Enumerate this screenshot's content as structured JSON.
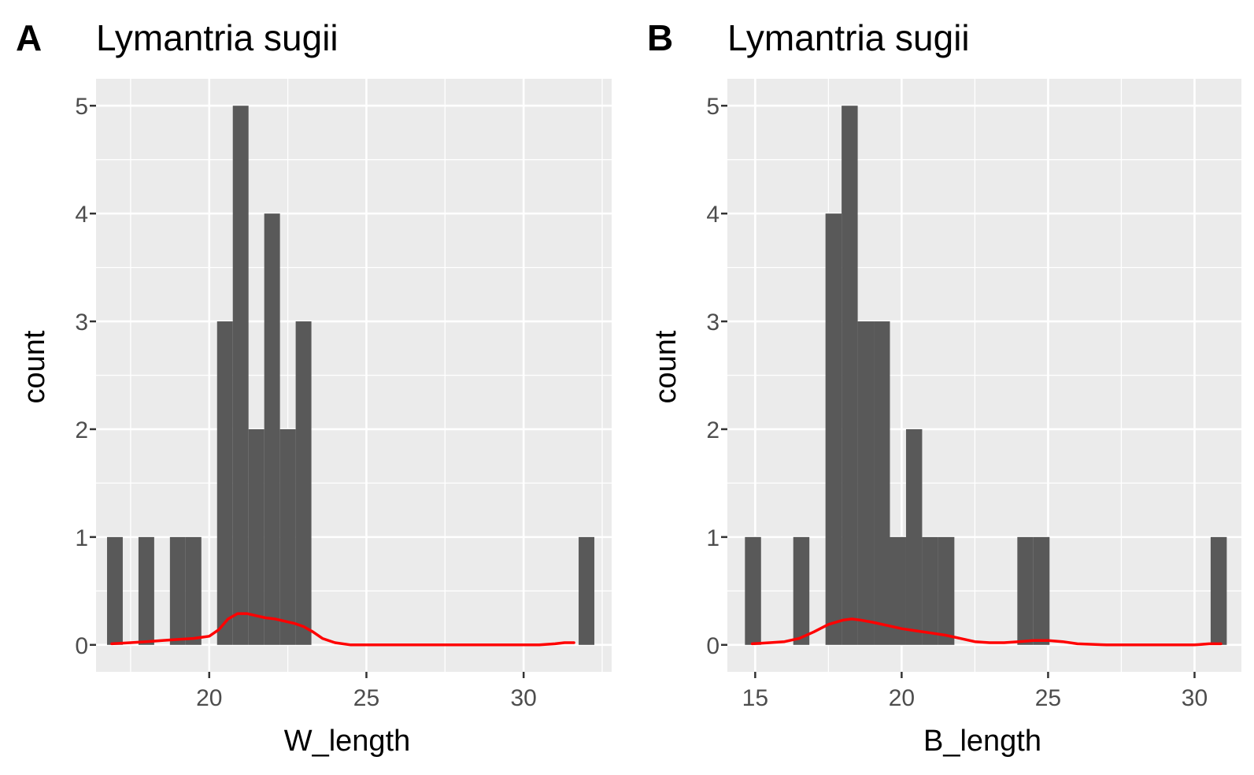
{
  "chart_data": [
    {
      "type": "bar",
      "panel_label": "A",
      "title": "Lymantria sugii",
      "xlabel": "W_length",
      "ylabel": "count",
      "xlim": [
        16.4,
        32.8
      ],
      "ylim": [
        -0.25,
        5.25
      ],
      "xticks": [
        20,
        25,
        30
      ],
      "yticks": [
        0,
        1,
        2,
        3,
        4,
        5
      ],
      "bin_width": 0.5,
      "bins": [
        {
          "x0": 16.75,
          "x1": 17.25,
          "count": 1
        },
        {
          "x0": 17.75,
          "x1": 18.25,
          "count": 1
        },
        {
          "x0": 18.75,
          "x1": 19.25,
          "count": 1
        },
        {
          "x0": 19.25,
          "x1": 19.75,
          "count": 1
        },
        {
          "x0": 20.25,
          "x1": 20.75,
          "count": 3
        },
        {
          "x0": 20.75,
          "x1": 21.25,
          "count": 5
        },
        {
          "x0": 21.25,
          "x1": 21.75,
          "count": 2
        },
        {
          "x0": 21.75,
          "x1": 22.25,
          "count": 4
        },
        {
          "x0": 22.25,
          "x1": 22.75,
          "count": 2
        },
        {
          "x0": 22.75,
          "x1": 23.25,
          "count": 3
        },
        {
          "x0": 31.75,
          "x1": 32.25,
          "count": 1
        }
      ],
      "bar_color": "#595959",
      "density_color": "#ff0000",
      "density": {
        "x": [
          16.9,
          17.5,
          18.0,
          18.5,
          19.0,
          19.5,
          20.0,
          20.3,
          20.6,
          20.9,
          21.2,
          21.5,
          21.8,
          22.1,
          22.4,
          22.7,
          23.0,
          23.3,
          23.6,
          24.0,
          24.5,
          25.0,
          27.0,
          29.0,
          30.5,
          31.0,
          31.3,
          31.6
        ],
        "y": [
          0.01,
          0.02,
          0.03,
          0.04,
          0.05,
          0.06,
          0.08,
          0.14,
          0.24,
          0.29,
          0.29,
          0.27,
          0.25,
          0.24,
          0.22,
          0.2,
          0.17,
          0.12,
          0.06,
          0.02,
          0.0,
          0.0,
          0.0,
          0.0,
          0.0,
          0.01,
          0.02,
          0.02
        ]
      }
    },
    {
      "type": "bar",
      "panel_label": "B",
      "title": "Lymantria sugii",
      "xlabel": "B_length",
      "ylabel": "count",
      "xlim": [
        14.05,
        31.6
      ],
      "ylim": [
        -0.25,
        5.25
      ],
      "xticks": [
        15,
        20,
        25,
        30
      ],
      "yticks": [
        0,
        1,
        2,
        3,
        4,
        5
      ],
      "bin_width": 0.55,
      "bins": [
        {
          "x0": 14.65,
          "x1": 15.2,
          "count": 1
        },
        {
          "x0": 16.3,
          "x1": 16.85,
          "count": 1
        },
        {
          "x0": 17.4,
          "x1": 17.95,
          "count": 4
        },
        {
          "x0": 17.95,
          "x1": 18.5,
          "count": 5
        },
        {
          "x0": 18.5,
          "x1": 19.05,
          "count": 3
        },
        {
          "x0": 19.05,
          "x1": 19.6,
          "count": 3
        },
        {
          "x0": 19.6,
          "x1": 20.15,
          "count": 1
        },
        {
          "x0": 20.15,
          "x1": 20.7,
          "count": 2
        },
        {
          "x0": 20.7,
          "x1": 21.25,
          "count": 1
        },
        {
          "x0": 21.25,
          "x1": 21.8,
          "count": 1
        },
        {
          "x0": 23.95,
          "x1": 24.5,
          "count": 1
        },
        {
          "x0": 24.5,
          "x1": 25.05,
          "count": 1
        },
        {
          "x0": 30.55,
          "x1": 31.1,
          "count": 1
        }
      ],
      "bar_color": "#595959",
      "density_color": "#ff0000",
      "density": {
        "x": [
          14.9,
          15.5,
          16.0,
          16.5,
          17.0,
          17.5,
          18.0,
          18.3,
          18.6,
          19.0,
          19.5,
          20.0,
          20.5,
          21.0,
          21.5,
          22.0,
          22.5,
          23.0,
          23.5,
          24.0,
          24.5,
          25.0,
          25.5,
          26.0,
          27.0,
          28.0,
          29.0,
          30.0,
          30.5,
          30.9
        ],
        "y": [
          0.01,
          0.02,
          0.03,
          0.06,
          0.12,
          0.19,
          0.23,
          0.24,
          0.23,
          0.21,
          0.18,
          0.15,
          0.13,
          0.11,
          0.09,
          0.06,
          0.03,
          0.02,
          0.02,
          0.03,
          0.04,
          0.04,
          0.03,
          0.01,
          0.0,
          0.0,
          0.0,
          0.0,
          0.01,
          0.01
        ]
      }
    }
  ]
}
